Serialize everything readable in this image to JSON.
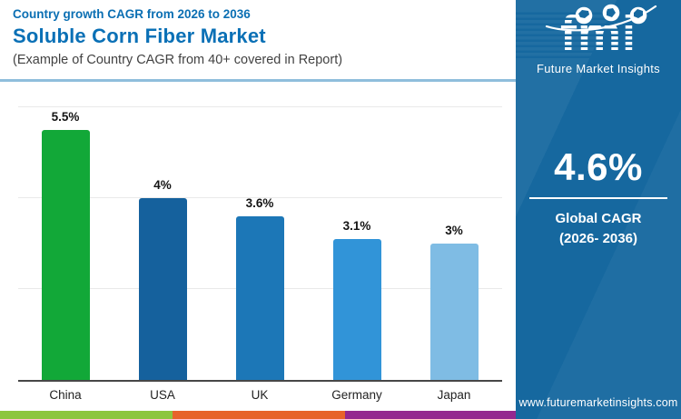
{
  "header": {
    "kicker": "Country growth CAGR from 2026 to 2036",
    "title": "Soluble Corn Fiber Market",
    "subtitle": "(Example of Country CAGR from 40+ covered in Report)"
  },
  "chart_data": {
    "type": "bar",
    "title": "Country growth CAGR from 2026 to 2036 - Soluble Corn Fiber Market",
    "categories": [
      "China",
      "USA",
      "UK",
      "Germany",
      "Japan"
    ],
    "values": [
      5.5,
      4,
      3.6,
      3.1,
      3
    ],
    "value_labels": [
      "5.5%",
      "4%",
      "3.6%",
      "3.1%",
      "3%"
    ],
    "bar_colors": [
      "#12A838",
      "#15619D",
      "#1C77B7",
      "#3194D8",
      "#7FBCE4"
    ],
    "xlabel": "",
    "ylabel": "",
    "ylim": [
      0,
      6.36
    ],
    "gridlines_percent": [
      2,
      4,
      6
    ],
    "grid": "horizontal-light-gray",
    "legend": "none"
  },
  "sidebar": {
    "logo": {
      "monogram": "fmi",
      "name": "Future Market Insights"
    },
    "stat_value": "4.6%",
    "stat_label_line1": "Global CAGR",
    "stat_label_line2": "(2026- 2036)",
    "website": "www.futuremarketinsights.com",
    "bg_color": "#16689F"
  },
  "footer_strip": {
    "colors": [
      "#8DC63F",
      "#E7632B",
      "#94278F"
    ]
  }
}
